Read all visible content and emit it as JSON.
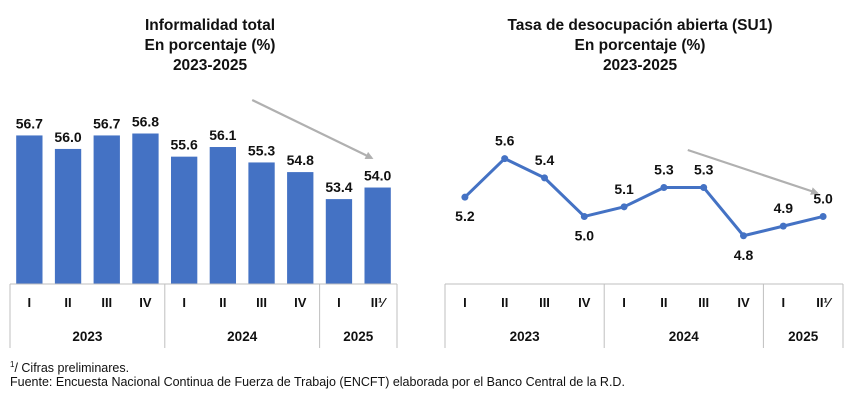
{
  "chart_data": [
    {
      "type": "bar",
      "title": [
        "Informalidad total",
        "En porcentaje (%)",
        "2023-2025"
      ],
      "categories": [
        "I",
        "II",
        "III",
        "IV",
        "I",
        "II",
        "III",
        "IV",
        "I",
        "II¹⁄"
      ],
      "groups": [
        {
          "label": "2023",
          "count": 4
        },
        {
          "label": "2024",
          "count": 4
        },
        {
          "label": "2025",
          "count": 2
        }
      ],
      "values": [
        56.7,
        56.0,
        56.7,
        56.8,
        55.6,
        56.1,
        55.3,
        54.8,
        53.4,
        54.0
      ],
      "value_labels": [
        "56.7",
        "56.0",
        "56.7",
        "56.8",
        "55.6",
        "56.1",
        "55.3",
        "54.8",
        "53.4",
        "54.0"
      ],
      "ylim": [
        49,
        57.5
      ],
      "xlabel": "",
      "ylabel": "",
      "color": "#4472c4",
      "trend_arrow": true
    },
    {
      "type": "line",
      "title": [
        "Tasa de desocupación abierta (SU1)",
        "En porcentaje (%)",
        "2023-2025"
      ],
      "categories": [
        "I",
        "II",
        "III",
        "IV",
        "I",
        "II",
        "III",
        "IV",
        "I",
        "II¹⁄"
      ],
      "groups": [
        {
          "label": "2023",
          "count": 4
        },
        {
          "label": "2024",
          "count": 4
        },
        {
          "label": "2025",
          "count": 2
        }
      ],
      "values": [
        5.2,
        5.6,
        5.4,
        5.0,
        5.1,
        5.3,
        5.3,
        4.8,
        4.9,
        5.0
      ],
      "value_labels": [
        "5.2",
        "5.6",
        "5.4",
        "5.0",
        "5.1",
        "5.3",
        "5.3",
        "4.8",
        "4.9",
        "5.0"
      ],
      "label_positions": [
        "below",
        "above",
        "above",
        "below",
        "above",
        "above",
        "above",
        "below",
        "above",
        "above"
      ],
      "ylim": [
        4.3,
        6.0
      ],
      "xlabel": "",
      "ylabel": "",
      "color": "#4472c4",
      "trend_arrow": true
    }
  ],
  "footnotes": {
    "note_marker": "1",
    "note": "/ Cifras preliminares.",
    "source": "Fuente: Encuesta Nacional Continua de Fuerza de Trabajo (ENCFT) elaborada por el Banco Central de la R.D."
  },
  "colors": {
    "series": "#4472c4",
    "arrow": "#b0b0b0",
    "axis": "#bfbfbf"
  }
}
